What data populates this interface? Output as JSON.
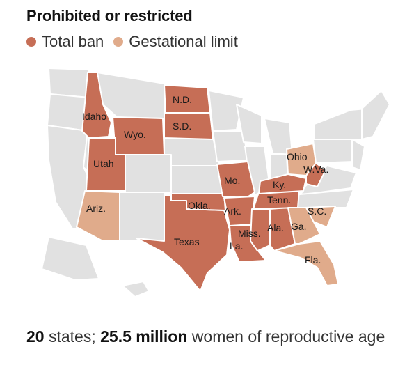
{
  "title": "Prohibited or restricted",
  "legend": {
    "items": [
      {
        "label": "Total ban",
        "color": "#c66e56"
      },
      {
        "label": "Gestational limit",
        "color": "#e0ab8b"
      }
    ]
  },
  "colors": {
    "neutral": "#e1e1e1",
    "border": "#ffffff",
    "total_ban": "#c66e56",
    "gestational_limit": "#e0ab8b"
  },
  "map": {
    "states_total_ban": [
      "Idaho",
      "Wyo.",
      "Utah",
      "N.D.",
      "S.D.",
      "Texas",
      "Okla.",
      "Mo.",
      "Ark.",
      "La.",
      "Miss.",
      "Ala.",
      "Tenn.",
      "Ky.",
      "W.Va."
    ],
    "states_gestational_limit": [
      "Ariz.",
      "Ohio",
      "S.C.",
      "Ga.",
      "Fla."
    ]
  },
  "footer": {
    "count": "20",
    "states_text": " states; ",
    "population": "25.5 million",
    "tail": " women of reproductive age"
  }
}
